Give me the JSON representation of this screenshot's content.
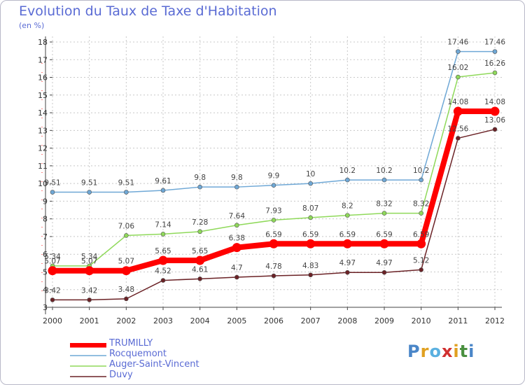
{
  "chart_data": {
    "type": "line",
    "title": "Evolution du Taux de Taxe d'Habitation",
    "subtitle": "(en %)",
    "categories": [
      "2000",
      "2001",
      "2002",
      "2003",
      "2004",
      "2005",
      "2006",
      "2007",
      "2008",
      "2009",
      "2010",
      "2011",
      "2012"
    ],
    "ylim": [
      3,
      18
    ],
    "yticks": [
      "3",
      "4",
      "5",
      "6",
      "7",
      "8",
      "9",
      "10",
      "11",
      "12",
      "13",
      "14",
      "15",
      "16",
      "17",
      "18"
    ],
    "grid": "dashed horizontal and vertical",
    "legend_position": "bottom-left",
    "series": [
      {
        "name": "TRUMILLY",
        "color": "#ff0000",
        "values": [
          5.07,
          5.07,
          5.07,
          5.65,
          5.65,
          6.38,
          6.59,
          6.59,
          6.59,
          6.59,
          6.59,
          14.08,
          14.08
        ],
        "labels": [
          "5.07",
          "5.07",
          "5.07",
          "5.65",
          "5.65",
          "6.38",
          "6.59",
          "6.59",
          "6.59",
          "6.59",
          "6.59",
          "14.08",
          "14.08"
        ]
      },
      {
        "name": "Rocquemont",
        "color": "#6fa8d6",
        "values": [
          9.51,
          9.51,
          9.51,
          9.61,
          9.8,
          9.8,
          9.9,
          10,
          10.2,
          10.2,
          10.2,
          17.46,
          17.46
        ],
        "labels": [
          "9.51",
          "9.51",
          "9.51",
          "9.61",
          "9.8",
          "9.8",
          "9.9",
          "10",
          "10.2",
          "10.2",
          "10.2",
          "17.46",
          "17.46"
        ]
      },
      {
        "name": "Auger-Saint-Vincent",
        "color": "#8fd95a",
        "values": [
          5.34,
          5.34,
          7.06,
          7.14,
          7.28,
          7.64,
          7.93,
          8.07,
          8.2,
          8.32,
          8.32,
          16.02,
          16.26
        ],
        "labels": [
          "5.34",
          "5.34",
          "7.06",
          "7.14",
          "7.28",
          "7.64",
          "7.93",
          "8.07",
          "8.2",
          "8.32",
          "8.32",
          "16.02",
          "16.26"
        ]
      },
      {
        "name": "Duvy",
        "color": "#6b2226",
        "values": [
          3.42,
          3.42,
          3.48,
          4.52,
          4.61,
          4.7,
          4.78,
          4.83,
          4.97,
          4.97,
          5.12,
          12.56,
          13.06
        ],
        "labels": [
          "3.42",
          "3.42",
          "3.48",
          "4.52",
          "4.61",
          "4.7",
          "4.78",
          "4.83",
          "4.97",
          "4.97",
          "5.12",
          "12.56",
          "13.06"
        ]
      }
    ]
  },
  "logo": {
    "letters": [
      "P",
      "r",
      "o",
      "x",
      "i",
      "t",
      "i"
    ],
    "colors": [
      "#4a86c8",
      "#e0a020",
      "#5ab0e0",
      "#d03030",
      "#e0a020",
      "#4a9040",
      "#4a86c8"
    ]
  }
}
